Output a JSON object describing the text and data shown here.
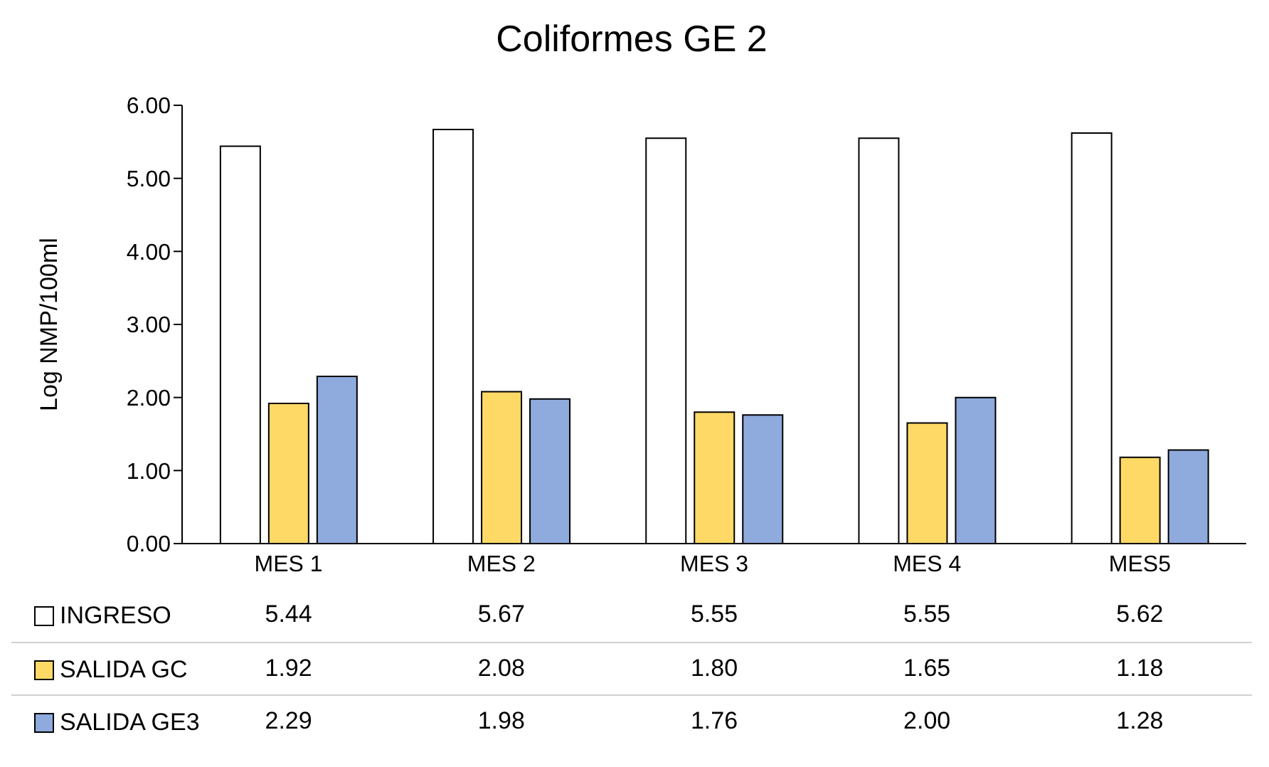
{
  "chart_data": {
    "type": "bar",
    "title": "Coliformes GE 2",
    "ylabel": "Log NMP/100ml",
    "categories": [
      "MES 1",
      "MES 2",
      "MES 3",
      "MES 4",
      "MES5"
    ],
    "series": [
      {
        "name": "INGRESO",
        "color": "#ffffff",
        "values": [
          5.44,
          5.67,
          5.55,
          5.55,
          5.62
        ],
        "value_labels": [
          "5.44",
          "5.67",
          "5.55",
          "5.55",
          "5.62"
        ]
      },
      {
        "name": "SALIDA GC",
        "color": "#ffd966",
        "values": [
          1.92,
          2.08,
          1.8,
          1.65,
          1.18
        ],
        "value_labels": [
          "1.92",
          "2.08",
          "1.80",
          "1.65",
          "1.18"
        ]
      },
      {
        "name": "SALIDA GE3",
        "color": "#8faadc",
        "values": [
          2.29,
          1.98,
          1.76,
          2.0,
          1.28
        ],
        "value_labels": [
          "2.29",
          "1.98",
          "1.76",
          "2.00",
          "1.28"
        ]
      }
    ],
    "ylim": [
      0,
      6
    ],
    "yticks": [
      {
        "value": 0,
        "label": "0.00"
      },
      {
        "value": 1,
        "label": "1.00"
      },
      {
        "value": 2,
        "label": "2.00"
      },
      {
        "value": 3,
        "label": "3.00"
      },
      {
        "value": 4,
        "label": "4.00"
      },
      {
        "value": 5,
        "label": "5.00"
      },
      {
        "value": 6,
        "label": "6.00"
      }
    ],
    "grid": false,
    "legend": "bottom"
  }
}
